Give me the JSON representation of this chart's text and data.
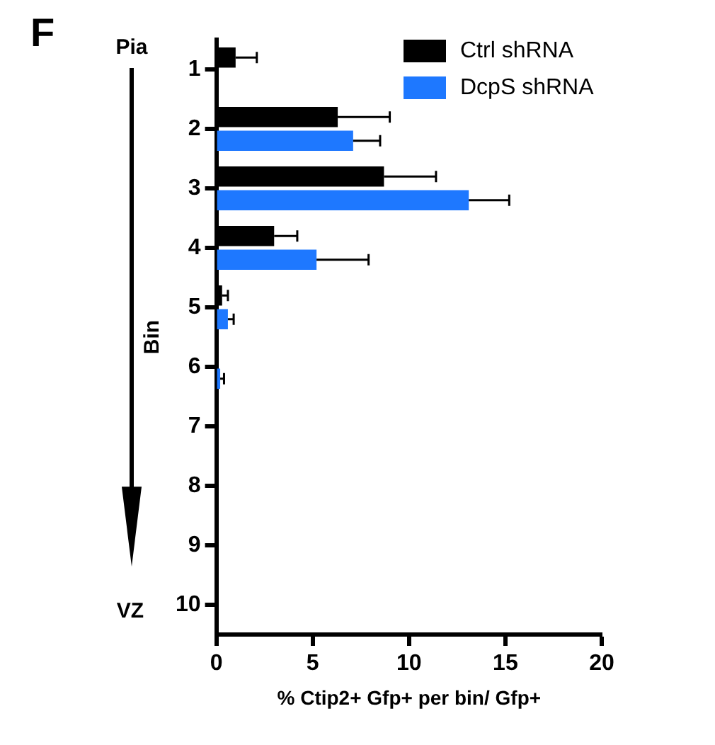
{
  "chart_data": {
    "type": "bar",
    "orientation": "horizontal",
    "xlabel": "% Ctip2+ Gfp+ per bin/ Gfp+",
    "ylabel": "Bin",
    "categories": [
      "1",
      "2",
      "3",
      "4",
      "5",
      "6",
      "7",
      "8",
      "9",
      "10"
    ],
    "series": [
      {
        "name": "Ctrl shRNA",
        "color": "#000000",
        "values": [
          1.0,
          6.3,
          8.7,
          3.0,
          0.3,
          0.1,
          0.05,
          0,
          0,
          0
        ],
        "errors": [
          1.1,
          2.7,
          2.7,
          1.2,
          0.3,
          null,
          null,
          null,
          null,
          null
        ]
      },
      {
        "name": "DcpS shRNA",
        "color": "#1e78ff",
        "values": [
          0,
          7.1,
          13.1,
          5.2,
          0.6,
          0.2,
          0,
          0,
          0,
          0
        ],
        "errors": [
          null,
          1.4,
          2.1,
          2.7,
          0.3,
          0.2,
          null,
          null,
          null,
          null
        ]
      }
    ],
    "xlim": [
      0,
      20
    ],
    "xticks": [
      0,
      5,
      10,
      15,
      20
    ],
    "grid": false,
    "legend": "top right",
    "annotations": [
      "F",
      "Pia",
      "VZ"
    ]
  }
}
